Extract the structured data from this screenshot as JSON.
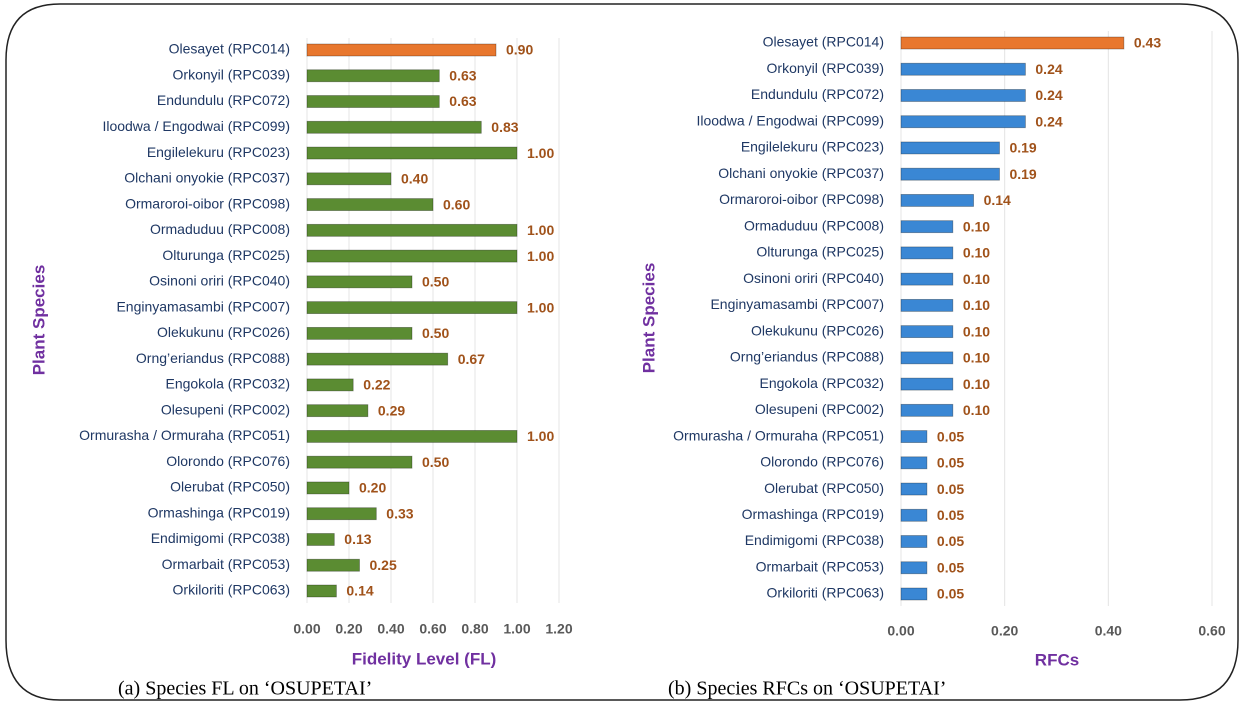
{
  "chart_data": [
    {
      "type": "barh",
      "categories": [
        "Olesayet (RPC014)",
        "Orkonyil (RPC039)",
        "Endundulu (RPC072)",
        "Iloodwa / Engodwai (RPC099)",
        "Engilelekuru (RPC023)",
        "Olchani onyokie (RPC037)",
        "Ormaroroi-oibor (RPC098)",
        "Ormaduduu (RPC008)",
        "Olturunga (RPC025)",
        "Osinoni oriri (RPC040)",
        "Enginyamasambi (RPC007)",
        "Olekukunu (RPC026)",
        "Orng’eriandus (RPC088)",
        "Engokola (RPC032)",
        "Olesupeni (RPC002)",
        "Ormurasha / Ormuraha (RPC051)",
        "Olorondo (RPC076)",
        "Olerubat (RPC050)",
        "Ormashinga (RPC019)",
        "Endimigomi (RPC038)",
        "Ormarbait (RPC053)",
        "Orkiloriti (RPC063)"
      ],
      "values": [
        0.9,
        0.63,
        0.63,
        0.83,
        1,
        0.4,
        0.6,
        1,
        1,
        0.5,
        1,
        0.5,
        0.67,
        0.22,
        0.29,
        1,
        0.5,
        0.2,
        0.33,
        0.13,
        0.25,
        0.14
      ],
      "value_labels": [
        "0.90",
        "0.63",
        "0.63",
        "0.83",
        "1.00",
        "0.40",
        "0.60",
        "1.00",
        "1.00",
        "0.50",
        "1.00",
        "0.50",
        "0.67",
        "0.22",
        "0.29",
        "1.00",
        "0.50",
        "0.20",
        "0.33",
        "0.13",
        "0.25",
        "0.14"
      ],
      "colors": [
        "#e8772e",
        "#5b8c32",
        "#5b8c32",
        "#5b8c32",
        "#5b8c32",
        "#5b8c32",
        "#5b8c32",
        "#5b8c32",
        "#5b8c32",
        "#5b8c32",
        "#5b8c32",
        "#5b8c32",
        "#5b8c32",
        "#5b8c32",
        "#5b8c32",
        "#5b8c32",
        "#5b8c32",
        "#5b8c32",
        "#5b8c32",
        "#5b8c32",
        "#5b8c32",
        "#5b8c32"
      ],
      "xlim": [
        0,
        1.2
      ],
      "xticks": [
        {
          "value": 0,
          "label": "0.00"
        },
        {
          "value": 0.2,
          "label": "0.20"
        },
        {
          "value": 0.4,
          "label": "0.40"
        },
        {
          "value": 0.6,
          "label": "0.60"
        },
        {
          "value": 0.8,
          "label": "0.80"
        },
        {
          "value": 1,
          "label": "1.00"
        },
        {
          "value": 1.2,
          "label": "1.20"
        }
      ],
      "xlabel": "Fidelity Level (FL)",
      "ylabel": "Plant Species",
      "grid": true,
      "caption": "(a) Species FL on ‘OSUPETAI’"
    },
    {
      "type": "barh",
      "categories": [
        "Olesayet (RPC014)",
        "Orkonyil (RPC039)",
        "Endundulu (RPC072)",
        "Iloodwa / Engodwai (RPC099)",
        "Engilelekuru (RPC023)",
        "Olchani onyokie (RPC037)",
        "Ormaroroi-oibor (RPC098)",
        "Ormaduduu (RPC008)",
        "Olturunga (RPC025)",
        "Osinoni oriri (RPC040)",
        "Enginyamasambi (RPC007)",
        "Olekukunu (RPC026)",
        "Orng’eriandus (RPC088)",
        "Engokola (RPC032)",
        "Olesupeni (RPC002)",
        "Ormurasha / Ormuraha (RPC051)",
        "Olorondo (RPC076)",
        "Olerubat (RPC050)",
        "Ormashinga (RPC019)",
        "Endimigomi (RPC038)",
        "Ormarbait (RPC053)",
        "Orkiloriti (RPC063)"
      ],
      "values": [
        0.43,
        0.24,
        0.24,
        0.24,
        0.19,
        0.19,
        0.14,
        0.1,
        0.1,
        0.1,
        0.1,
        0.1,
        0.1,
        0.1,
        0.1,
        0.05,
        0.05,
        0.05,
        0.05,
        0.05,
        0.05,
        0.05
      ],
      "value_labels": [
        "0.43",
        "0.24",
        "0.24",
        "0.24",
        "0.19",
        "0.19",
        "0.14",
        "0.10",
        "0.10",
        "0.10",
        "0.10",
        "0.10",
        "0.10",
        "0.10",
        "0.10",
        "0.05",
        "0.05",
        "0.05",
        "0.05",
        "0.05",
        "0.05",
        "0.05"
      ],
      "colors": [
        "#e8772e",
        "#3a87d4",
        "#3a87d4",
        "#3a87d4",
        "#3a87d4",
        "#3a87d4",
        "#3a87d4",
        "#3a87d4",
        "#3a87d4",
        "#3a87d4",
        "#3a87d4",
        "#3a87d4",
        "#3a87d4",
        "#3a87d4",
        "#3a87d4",
        "#3a87d4",
        "#3a87d4",
        "#3a87d4",
        "#3a87d4",
        "#3a87d4",
        "#3a87d4",
        "#3a87d4"
      ],
      "xlim": [
        0,
        0.6
      ],
      "xticks": [
        {
          "value": 0,
          "label": "0.00"
        },
        {
          "value": 0.2,
          "label": "0.20"
        },
        {
          "value": 0.4,
          "label": "0.40"
        },
        {
          "value": 0.6,
          "label": "0.60"
        }
      ],
      "xlabel": "RFCs",
      "ylabel": "Plant Species",
      "grid": true,
      "caption": "(b)  Species  RFCs on ‘OSUPETAI’"
    }
  ]
}
